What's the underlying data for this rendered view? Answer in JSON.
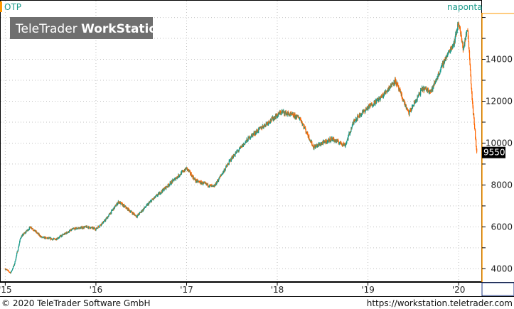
{
  "chart_data": {
    "type": "candlestick",
    "symbol": "OTP",
    "period": "naponta",
    "watermark_light": "TeleTrader ",
    "watermark_bold": "WorkStation",
    "last_price": "9550",
    "ylim": [
      3400,
      16800
    ],
    "yticks": [
      4000,
      6000,
      8000,
      10000,
      12000,
      14000
    ],
    "ytick_labels": [
      "4000",
      "6000",
      "8000",
      "10000",
      "12000",
      "14000"
    ],
    "x_range": [
      2014.95,
      2020.25
    ],
    "xticks": [
      2015,
      2016,
      2017,
      2018,
      2019,
      2020
    ],
    "xtick_labels": [
      "'15",
      "'16",
      "'17",
      "'18",
      "'19",
      "'20"
    ],
    "colors": {
      "up": "#1a9a8a",
      "down": "#ff6600",
      "axis": "#ff9900",
      "grid": "#c0c0c0",
      "label_box": "#000000",
      "label_text": "#ffffff",
      "watermark_bg": "#6f6f6f"
    },
    "closes": [
      {
        "t": 2015.0,
        "v": 4000
      },
      {
        "t": 2015.06,
        "v": 3800
      },
      {
        "t": 2015.1,
        "v": 4200
      },
      {
        "t": 2015.17,
        "v": 5500
      },
      {
        "t": 2015.28,
        "v": 6000
      },
      {
        "t": 2015.4,
        "v": 5500
      },
      {
        "t": 2015.55,
        "v": 5400
      },
      {
        "t": 2015.75,
        "v": 5900
      },
      {
        "t": 2015.9,
        "v": 6000
      },
      {
        "t": 2016.0,
        "v": 5900
      },
      {
        "t": 2016.1,
        "v": 6300
      },
      {
        "t": 2016.25,
        "v": 7200
      },
      {
        "t": 2016.45,
        "v": 6500
      },
      {
        "t": 2016.6,
        "v": 7200
      },
      {
        "t": 2016.8,
        "v": 8000
      },
      {
        "t": 2017.0,
        "v": 8800
      },
      {
        "t": 2017.1,
        "v": 8200
      },
      {
        "t": 2017.3,
        "v": 7900
      },
      {
        "t": 2017.5,
        "v": 9300
      },
      {
        "t": 2017.7,
        "v": 10300
      },
      {
        "t": 2017.9,
        "v": 11000
      },
      {
        "t": 2018.05,
        "v": 11500
      },
      {
        "t": 2018.25,
        "v": 11200
      },
      {
        "t": 2018.4,
        "v": 9800
      },
      {
        "t": 2018.6,
        "v": 10200
      },
      {
        "t": 2018.75,
        "v": 9900
      },
      {
        "t": 2018.85,
        "v": 11100
      },
      {
        "t": 2019.0,
        "v": 11700
      },
      {
        "t": 2019.15,
        "v": 12200
      },
      {
        "t": 2019.3,
        "v": 13000
      },
      {
        "t": 2019.45,
        "v": 11400
      },
      {
        "t": 2019.6,
        "v": 12600
      },
      {
        "t": 2019.7,
        "v": 12500
      },
      {
        "t": 2019.85,
        "v": 14000
      },
      {
        "t": 2019.95,
        "v": 14800
      },
      {
        "t": 2020.0,
        "v": 15800
      },
      {
        "t": 2020.05,
        "v": 14500
      },
      {
        "t": 2020.1,
        "v": 15500
      },
      {
        "t": 2020.15,
        "v": 12000
      },
      {
        "t": 2020.2,
        "v": 9550
      }
    ]
  },
  "footer": {
    "copyright": "© 2020 TeleTrader Software GmbH",
    "url": "https://workstation.teletrader.com"
  }
}
